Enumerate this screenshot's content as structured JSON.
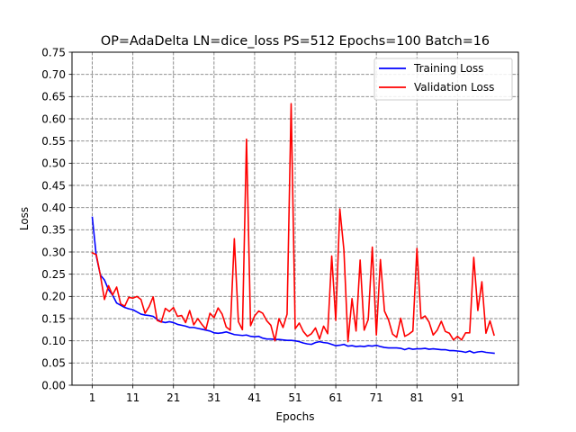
{
  "chart_data": {
    "type": "line",
    "title": "OP=AdaDelta LN=dice_loss PS=512 Epochs=100 Batch=16",
    "xlabel": "Epochs",
    "ylabel": "Loss",
    "xlim": [
      -4,
      106
    ],
    "ylim": [
      0,
      0.75
    ],
    "xticks": [
      1,
      11,
      21,
      31,
      41,
      51,
      61,
      71,
      81,
      91
    ],
    "yticks": [
      0.0,
      0.05,
      0.1,
      0.15,
      0.2,
      0.25,
      0.3,
      0.35,
      0.4,
      0.45,
      0.5,
      0.55,
      0.6,
      0.65,
      0.7,
      0.75
    ],
    "grid": true,
    "legend_position": "top-right",
    "x": [
      1,
      2,
      3,
      4,
      5,
      6,
      7,
      8,
      9,
      10,
      11,
      12,
      13,
      14,
      15,
      16,
      17,
      18,
      19,
      20,
      21,
      22,
      23,
      24,
      25,
      26,
      27,
      28,
      29,
      30,
      31,
      32,
      33,
      34,
      35,
      36,
      37,
      38,
      39,
      40,
      41,
      42,
      43,
      44,
      45,
      46,
      47,
      48,
      49,
      50,
      51,
      52,
      53,
      54,
      55,
      56,
      57,
      58,
      59,
      60,
      61,
      62,
      63,
      64,
      65,
      66,
      67,
      68,
      69,
      70,
      71,
      72,
      73,
      74,
      75,
      76,
      77,
      78,
      79,
      80,
      81,
      82,
      83,
      84,
      85,
      86,
      87,
      88,
      89,
      90,
      91,
      92,
      93,
      94,
      95,
      96,
      97,
      98,
      99,
      100
    ],
    "series": [
      {
        "name": "Training Loss",
        "color": "#0000ff",
        "values": [
          0.378,
          0.29,
          0.248,
          0.237,
          0.215,
          0.203,
          0.185,
          0.18,
          0.175,
          0.172,
          0.17,
          0.165,
          0.16,
          0.158,
          0.157,
          0.155,
          0.148,
          0.143,
          0.141,
          0.143,
          0.141,
          0.137,
          0.135,
          0.133,
          0.13,
          0.13,
          0.128,
          0.126,
          0.124,
          0.122,
          0.118,
          0.117,
          0.118,
          0.12,
          0.117,
          0.114,
          0.113,
          0.112,
          0.113,
          0.11,
          0.109,
          0.11,
          0.106,
          0.104,
          0.104,
          0.103,
          0.103,
          0.102,
          0.101,
          0.101,
          0.1,
          0.098,
          0.095,
          0.093,
          0.092,
          0.096,
          0.098,
          0.096,
          0.095,
          0.092,
          0.089,
          0.09,
          0.092,
          0.088,
          0.089,
          0.087,
          0.088,
          0.087,
          0.089,
          0.088,
          0.09,
          0.087,
          0.085,
          0.084,
          0.084,
          0.084,
          0.083,
          0.08,
          0.083,
          0.081,
          0.082,
          0.082,
          0.083,
          0.081,
          0.082,
          0.081,
          0.08,
          0.08,
          0.078,
          0.078,
          0.077,
          0.076,
          0.074,
          0.077,
          0.073,
          0.075,
          0.076,
          0.074,
          0.073,
          0.072
        ]
      },
      {
        "name": "Validation Loss",
        "color": "#ff0000",
        "values": [
          0.298,
          0.294,
          0.247,
          0.193,
          0.224,
          0.203,
          0.221,
          0.183,
          0.178,
          0.198,
          0.196,
          0.2,
          0.193,
          0.162,
          0.177,
          0.199,
          0.146,
          0.142,
          0.173,
          0.166,
          0.175,
          0.155,
          0.157,
          0.141,
          0.168,
          0.136,
          0.15,
          0.137,
          0.126,
          0.162,
          0.152,
          0.174,
          0.16,
          0.131,
          0.124,
          0.33,
          0.143,
          0.125,
          0.554,
          0.134,
          0.156,
          0.167,
          0.162,
          0.145,
          0.135,
          0.1,
          0.15,
          0.13,
          0.16,
          0.634,
          0.127,
          0.14,
          0.121,
          0.11,
          0.116,
          0.129,
          0.104,
          0.133,
          0.116,
          0.291,
          0.146,
          0.397,
          0.305,
          0.098,
          0.195,
          0.122,
          0.282,
          0.124,
          0.148,
          0.311,
          0.113,
          0.283,
          0.167,
          0.147,
          0.115,
          0.108,
          0.151,
          0.11,
          0.115,
          0.122,
          0.308,
          0.15,
          0.156,
          0.142,
          0.113,
          0.124,
          0.144,
          0.121,
          0.117,
          0.102,
          0.11,
          0.102,
          0.118,
          0.118,
          0.288,
          0.168,
          0.233,
          0.117,
          0.145,
          0.113
        ]
      }
    ]
  }
}
